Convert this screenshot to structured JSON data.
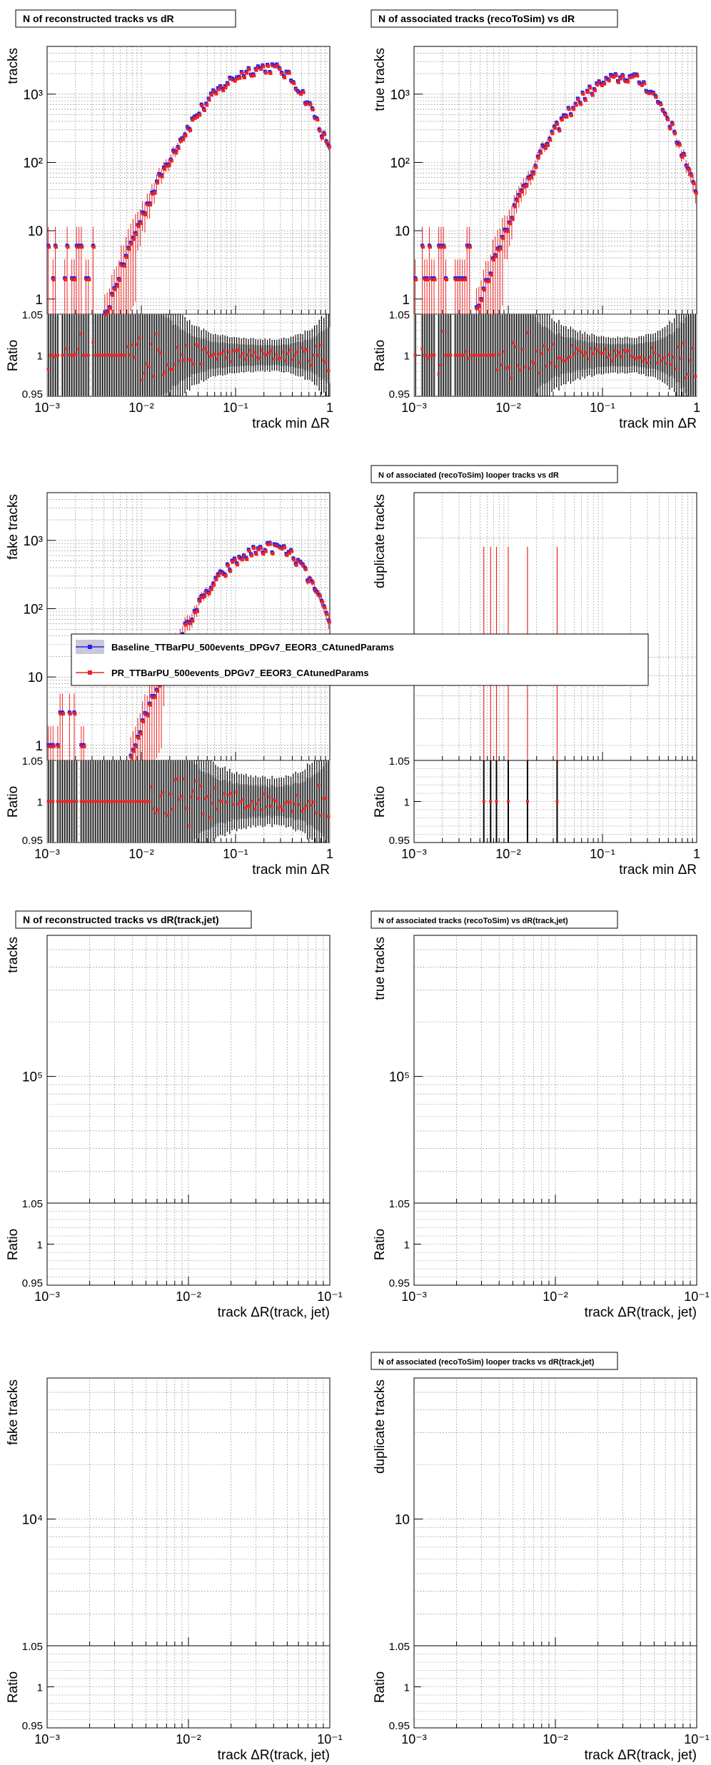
{
  "legend": {
    "entries": [
      {
        "name": "Baseline_TTBarPU_500events_DPGv7_EEOR3_CAtunedParams",
        "color": "#2222ee",
        "band": "#c8c8d8"
      },
      {
        "name": "PR_TTBarPU_500events_DPGv7_EEOR3_CAtunedParams",
        "color": "#ee2222"
      }
    ]
  },
  "colors": {
    "baseline": "#2222ee",
    "pr": "#ee2222",
    "ratio_band": "#bdbdbd",
    "grid": "#888888"
  },
  "chart_data": [
    {
      "type": "scatter",
      "title": "N of reconstructed tracks vs dR",
      "ylabel": "tracks",
      "xlabel": "track min   ΔR",
      "xscale": "log",
      "yscale": "log",
      "xlim": [
        0.001,
        1
      ],
      "ylim": [
        0.6,
        5000
      ],
      "xticks": [
        0.001,
        0.01,
        0.1,
        1
      ],
      "xtick_labels": [
        "10⁻³",
        "10⁻²",
        "10⁻¹",
        "1"
      ],
      "yticks": [
        1,
        10,
        100,
        1000
      ],
      "ytick_labels": [
        "1",
        "10",
        "10²",
        "10³"
      ],
      "ratio_ylim": [
        0.95,
        1.05
      ],
      "ratio_ylabel": "Ratio",
      "ratio_tick_labels": [
        "1.05",
        "1",
        "0.95"
      ],
      "series": [
        {
          "name": "Baseline",
          "shape": "main",
          "peak_x": 0.22,
          "peak_y": 2500,
          "width": 1.05,
          "low_x": 0.0032,
          "noise_y": 2
        },
        {
          "name": "PR",
          "shape": "main",
          "peak_x": 0.22,
          "peak_y": 2500,
          "width": 1.05,
          "low_x": 0.0032,
          "noise_y": 2
        }
      ],
      "ratio_value": 1.0
    },
    {
      "type": "scatter",
      "title": "N of associated tracks (recoToSim) vs dR",
      "ylabel": "true tracks",
      "xlabel": "track min   ΔR",
      "xscale": "log",
      "yscale": "log",
      "xlim": [
        0.001,
        1
      ],
      "ylim": [
        0.6,
        5000
      ],
      "xticks": [
        0.001,
        0.01,
        0.1,
        1
      ],
      "xtick_labels": [
        "10⁻³",
        "10⁻²",
        "10⁻¹",
        "1"
      ],
      "yticks": [
        1,
        10,
        100,
        1000
      ],
      "ytick_labels": [
        "1",
        "10",
        "10²",
        "10³"
      ],
      "ratio_ylim": [
        0.95,
        1.05
      ],
      "ratio_ylabel": "Ratio",
      "ratio_tick_labels": [
        "1.05",
        "1",
        "0.95"
      ],
      "series": [
        {
          "name": "Baseline",
          "shape": "main",
          "peak_x": 0.18,
          "peak_y": 1800,
          "width": 1.0,
          "low_x": 0.004,
          "noise_y": 2
        },
        {
          "name": "PR",
          "shape": "main",
          "peak_x": 0.18,
          "peak_y": 1800,
          "width": 1.0,
          "low_x": 0.004,
          "noise_y": 2
        }
      ],
      "ratio_value": 1.0
    },
    {
      "type": "scatter",
      "title": "",
      "ylabel": "fake tracks",
      "xlabel": "track min   ΔR",
      "xscale": "log",
      "yscale": "log",
      "xlim": [
        0.001,
        1
      ],
      "ylim": [
        0.6,
        5000
      ],
      "xticks": [
        0.001,
        0.01,
        0.1,
        1
      ],
      "xtick_labels": [
        "10⁻³",
        "10⁻²",
        "10⁻¹",
        "1"
      ],
      "yticks": [
        1,
        10,
        100,
        1000
      ],
      "ytick_labels": [
        "1",
        "10",
        "10²",
        "10³"
      ],
      "ratio_ylim": [
        0.95,
        1.05
      ],
      "ratio_ylabel": "Ratio",
      "ratio_tick_labels": [
        "1.05",
        "1",
        "0.95"
      ],
      "series": [
        {
          "name": "Baseline",
          "shape": "main",
          "peak_x": 0.25,
          "peak_y": 800,
          "width": 1.0,
          "low_x": 0.0025,
          "noise_y": 1
        },
        {
          "name": "PR",
          "shape": "main",
          "peak_x": 0.25,
          "peak_y": 800,
          "width": 1.0,
          "low_x": 0.0025,
          "noise_y": 1
        }
      ],
      "ratio_value": 1.0
    },
    {
      "type": "scatter",
      "title": "N of associated (recoToSim) looper tracks vs dR",
      "ylabel": "duplicate tracks",
      "xlabel": "track min   ΔR",
      "xscale": "log",
      "yscale": "log",
      "xlim": [
        0.001,
        1
      ],
      "ylim": [
        0.55,
        2.6
      ],
      "xticks": [
        0.001,
        0.01,
        0.1,
        1
      ],
      "xtick_labels": [
        "10⁻³",
        "10⁻²",
        "10⁻¹",
        "1"
      ],
      "yticks": [],
      "ytick_labels": [],
      "ratio_ylim": [
        0.95,
        1.05
      ],
      "ratio_ylabel": "Ratio",
      "ratio_tick_labels": [
        "1.05",
        "1",
        "0.95"
      ],
      "series": [
        {
          "name": "Baseline",
          "shape": "points",
          "x": [
            0.0055,
            0.0065,
            0.0075,
            0.01,
            0.016,
            0.033
          ],
          "y": [
            1,
            1,
            1,
            1,
            1,
            1
          ]
        },
        {
          "name": "PR",
          "shape": "points",
          "x": [
            0.0055,
            0.0065,
            0.0075,
            0.01,
            0.016,
            0.033
          ],
          "y": [
            1,
            1,
            1,
            1,
            1,
            1
          ]
        }
      ],
      "ratio_value": 1.0
    },
    {
      "type": "scatter",
      "title": "N of reconstructed tracks vs dR(track,jet)",
      "ylabel": "tracks",
      "xlabel": "track    ΔR(track, jet)",
      "xscale": "log",
      "yscale": "log",
      "xlim": [
        0.001,
        0.1
      ],
      "ylim": [
        20000,
        600000
      ],
      "xticks": [
        0.001,
        0.01,
        0.1
      ],
      "xtick_labels": [
        "10⁻³",
        "10⁻²",
        "10⁻¹"
      ],
      "yticks": [
        100000
      ],
      "ytick_labels": [
        "10⁵"
      ],
      "ratio_ylim": [
        0.95,
        1.05
      ],
      "ratio_ylabel": "Ratio",
      "ratio_tick_labels": [
        "1.05",
        "1",
        "0.95"
      ],
      "series": [],
      "ratio_value": null
    },
    {
      "type": "scatter",
      "title": "N of associated tracks (recoToSim) vs dR(track,jet)",
      "ylabel": "true tracks",
      "xlabel": "track    ΔR(track, jet)",
      "xscale": "log",
      "yscale": "log",
      "xlim": [
        0.001,
        0.1
      ],
      "ylim": [
        20000,
        600000
      ],
      "xticks": [
        0.001,
        0.01,
        0.1
      ],
      "xtick_labels": [
        "10⁻³",
        "10⁻²",
        "10⁻¹"
      ],
      "yticks": [
        100000
      ],
      "ytick_labels": [
        "10⁵"
      ],
      "ratio_ylim": [
        0.95,
        1.05
      ],
      "ratio_ylabel": "Ratio",
      "ratio_tick_labels": [
        "1.05",
        "1",
        "0.95"
      ],
      "series": [],
      "ratio_value": null
    },
    {
      "type": "scatter",
      "title": "",
      "ylabel": "fake tracks",
      "xlabel": "track    ΔR(track, jet)",
      "xscale": "log",
      "yscale": "log",
      "xlim": [
        0.001,
        0.1
      ],
      "ylim": [
        2000,
        60000
      ],
      "xticks": [
        0.001,
        0.01,
        0.1
      ],
      "xtick_labels": [
        "10⁻³",
        "10⁻²",
        "10⁻¹"
      ],
      "yticks": [
        10000
      ],
      "ytick_labels": [
        "10⁴"
      ],
      "ratio_ylim": [
        0.95,
        1.05
      ],
      "ratio_ylabel": "Ratio",
      "ratio_tick_labels": [
        "1.05",
        "1",
        "0.95"
      ],
      "series": [],
      "ratio_value": null
    },
    {
      "type": "scatter",
      "title": "N of associated (recoToSim) looper tracks vs dR(track,jet)",
      "ylabel": "duplicate tracks",
      "xlabel": "track    ΔR(track, jet)",
      "xscale": "log",
      "yscale": "log",
      "xlim": [
        0.001,
        0.1
      ],
      "ylim": [
        2,
        60
      ],
      "xticks": [
        0.001,
        0.01,
        0.1
      ],
      "xtick_labels": [
        "10⁻³",
        "10⁻²",
        "10⁻¹"
      ],
      "yticks": [
        10
      ],
      "ytick_labels": [
        "10"
      ],
      "ratio_ylim": [
        0.95,
        1.05
      ],
      "ratio_ylabel": "Ratio",
      "ratio_tick_labels": [
        "1.05",
        "1",
        "0.95"
      ],
      "series": [],
      "ratio_value": null
    }
  ]
}
